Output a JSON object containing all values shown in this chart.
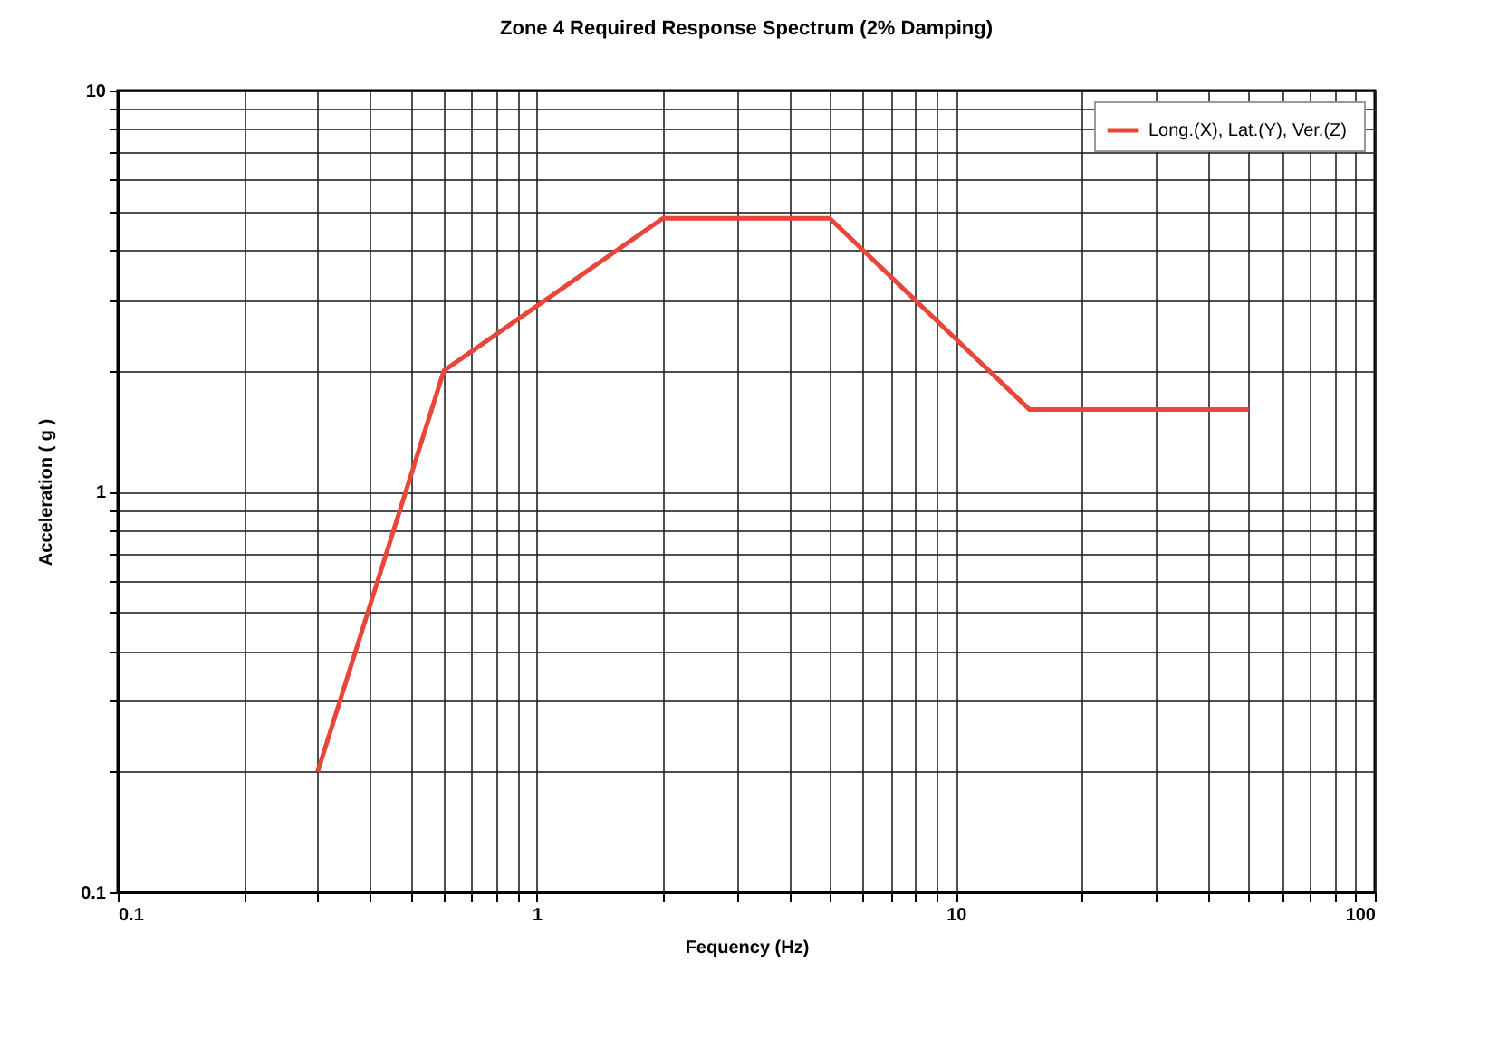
{
  "chart_data": {
    "type": "line",
    "title": "Zone 4 Required Response Spectrum (2% Damping)",
    "xlabel": "Fequency (Hz)",
    "ylabel": "Acceleration ( g )",
    "log": "xy",
    "grid": true,
    "legend": "top right",
    "marker": "none",
    "line_style": "solid",
    "xlim": [
      0.1,
      100
    ],
    "ylim": [
      0.1,
      10
    ],
    "xticks": [
      0.1,
      {
        "value": 0.2,
        "label": null
      },
      {
        "value": 0.3,
        "label": null
      },
      {
        "value": 0.4,
        "label": null
      },
      {
        "value": 0.5,
        "label": null
      },
      {
        "value": 0.6,
        "label": null
      },
      {
        "value": 0.7,
        "label": null
      },
      {
        "value": 0.8,
        "label": null
      },
      {
        "value": 0.9,
        "label": null
      },
      1,
      {
        "value": 2,
        "label": null
      },
      {
        "value": 3,
        "label": null
      },
      {
        "value": 4,
        "label": null
      },
      {
        "value": 5,
        "label": null
      },
      {
        "value": 6,
        "label": null
      },
      {
        "value": 7,
        "label": null
      },
      {
        "value": 8,
        "label": null
      },
      {
        "value": 9,
        "label": null
      },
      10,
      {
        "value": 20,
        "label": null
      },
      {
        "value": 30,
        "label": null
      },
      {
        "value": 40,
        "label": null
      },
      {
        "value": 50,
        "label": null
      },
      {
        "value": 60,
        "label": null
      },
      {
        "value": 70,
        "label": null
      },
      {
        "value": 80,
        "label": null
      },
      {
        "value": 90,
        "label": null
      },
      100
    ],
    "yticks": [
      0.1,
      {
        "value": 0.2,
        "label": null
      },
      {
        "value": 0.3,
        "label": null
      },
      {
        "value": 0.4,
        "label": null
      },
      {
        "value": 0.5,
        "label": null
      },
      {
        "value": 0.6,
        "label": null
      },
      {
        "value": 0.7,
        "label": null
      },
      {
        "value": 0.8,
        "label": null
      },
      {
        "value": 0.9,
        "label": null
      },
      1,
      {
        "value": 2,
        "label": null
      },
      {
        "value": 3,
        "label": null
      },
      {
        "value": 4,
        "label": null
      },
      {
        "value": 5,
        "label": null
      },
      {
        "value": 6,
        "label": null
      },
      {
        "value": 7,
        "label": null
      },
      {
        "value": 8,
        "label": null
      },
      {
        "value": 9,
        "label": null
      },
      10
    ],
    "x": [
      0.3,
      0.6,
      2,
      5,
      15,
      50
    ],
    "series": [
      {
        "name": "Long.(X),  Lat.(Y), Ver.(Z)",
        "color": "#e8463a",
        "values": [
          0.2,
          2.0,
          4.8,
          4.8,
          1.6,
          1.6
        ]
      }
    ]
  }
}
